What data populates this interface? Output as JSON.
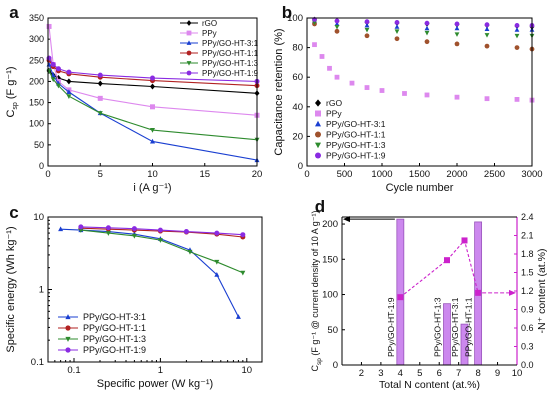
{
  "chart_data": [
    {
      "panel_label": "a",
      "type": "line",
      "xlabel": "i (A g⁻¹)",
      "ylabel_main": "C",
      "ylabel_sub": "sp",
      "ylabel_unit": "(F g⁻¹)",
      "xlim": [
        0,
        20
      ],
      "ylim": [
        0,
        350
      ],
      "xticks": [
        0,
        5,
        10,
        15,
        20
      ],
      "yticks": [
        0,
        50,
        100,
        150,
        200,
        250,
        300,
        350
      ],
      "legend_position": "top-right",
      "series": [
        {
          "name": "rGO",
          "color": "#000000",
          "marker": "diamond",
          "x": [
            0.1,
            0.5,
            1,
            2,
            5,
            10,
            20
          ],
          "y": [
            225,
            215,
            208,
            200,
            195,
            188,
            172
          ]
        },
        {
          "name": "PPy",
          "color": "#dd88ee",
          "marker": "square",
          "x": [
            0.1,
            0.5,
            1,
            2,
            5,
            10,
            20
          ],
          "y": [
            330,
            240,
            200,
            180,
            160,
            140,
            120
          ]
        },
        {
          "name": "PPy/GO-HT-3:1",
          "color": "#1a3fd1",
          "marker": "triangle-up",
          "x": [
            0.1,
            0.5,
            1,
            2,
            5,
            10,
            20
          ],
          "y": [
            240,
            215,
            195,
            175,
            125,
            58,
            14
          ]
        },
        {
          "name": "PPy/GO-HT-1:1",
          "color": "#b22222",
          "marker": "circle",
          "x": [
            0.1,
            0.5,
            1,
            2,
            5,
            10,
            20
          ],
          "y": [
            250,
            235,
            225,
            218,
            210,
            202,
            190
          ]
        },
        {
          "name": "PPy/GO-HT-1:3",
          "color": "#2e8b2e",
          "marker": "triangle-down",
          "x": [
            0.1,
            0.5,
            1,
            2,
            5,
            10,
            20
          ],
          "y": [
            225,
            205,
            190,
            165,
            125,
            85,
            62
          ]
        },
        {
          "name": "PPy/GO-HT-1:9",
          "color": "#8a2be2",
          "marker": "circle",
          "x": [
            0.1,
            0.5,
            1,
            2,
            5,
            10,
            20
          ],
          "y": [
            255,
            240,
            230,
            222,
            215,
            208,
            200
          ]
        }
      ]
    },
    {
      "panel_label": "b",
      "type": "scatter",
      "xlabel": "Cycle number",
      "ylabel": "Capacitance retention (%)",
      "xlim": [
        0,
        3000
      ],
      "ylim": [
        0,
        100
      ],
      "xticks": [
        0,
        500,
        1000,
        1500,
        2000,
        2500,
        3000
      ],
      "yticks": [
        0,
        20,
        40,
        60,
        80,
        100
      ],
      "legend_position": "center-left",
      "series": [
        {
          "name": "rGO",
          "color": "#000000",
          "marker": "diamond",
          "x": [
            100,
            400,
            800,
            1200,
            1600,
            2000,
            2400,
            2800,
            3000
          ],
          "y": [
            99,
            98,
            97,
            96.5,
            96,
            95.5,
            95,
            94.5,
            94
          ]
        },
        {
          "name": "PPy",
          "color": "#dd88ee",
          "marker": "square",
          "x": [
            100,
            200,
            300,
            400,
            600,
            800,
            1000,
            1300,
            1600,
            2000,
            2400,
            2800,
            3000
          ],
          "y": [
            82,
            74,
            66,
            60,
            56,
            53,
            51,
            49,
            48,
            46.5,
            45.5,
            45,
            44.5
          ]
        },
        {
          "name": "PPy/GO-HT-3:1",
          "color": "#1a3fd1",
          "marker": "triangle-up",
          "x": [
            100,
            400,
            800,
            1200,
            1600,
            2000,
            2400,
            2800,
            3000
          ],
          "y": [
            98,
            96,
            95,
            94,
            93,
            93,
            92.5,
            92,
            92
          ]
        },
        {
          "name": "PPy/GO-HT-1:1",
          "color": "#a0522d",
          "marker": "circle",
          "x": [
            100,
            400,
            800,
            1200,
            1600,
            2000,
            2400,
            2800,
            3000
          ],
          "y": [
            96,
            91,
            88,
            86,
            84,
            82.5,
            81,
            80,
            79
          ]
        },
        {
          "name": "PPy/GO-HT-1:3",
          "color": "#2e8b2e",
          "marker": "triangle-down",
          "x": [
            100,
            400,
            800,
            1200,
            1600,
            2000,
            2400,
            2800,
            3000
          ],
          "y": [
            97,
            94,
            92,
            91,
            90,
            89,
            88.5,
            88,
            88
          ]
        },
        {
          "name": "PPy/GO-HT-1:9",
          "color": "#8a2be2",
          "marker": "circle",
          "x": [
            100,
            400,
            800,
            1200,
            1600,
            2000,
            2400,
            2800,
            3000
          ],
          "y": [
            99,
            98,
            97.5,
            97,
            96.5,
            96,
            95.5,
            95,
            95
          ]
        }
      ]
    },
    {
      "panel_label": "c",
      "type": "line",
      "xscale": "log",
      "yscale": "log",
      "xlabel": "Specific power (W kg⁻¹)",
      "ylabel": "Specific energy (Wh kg⁻¹)",
      "xlim": [
        0.05,
        15
      ],
      "ylim": [
        0.1,
        10
      ],
      "xticks": [
        0.1,
        1,
        10
      ],
      "xtick_labels": [
        "0.1",
        "1",
        "10"
      ],
      "yticks": [
        0.1,
        1,
        10
      ],
      "ytick_labels": [
        "0.1",
        "1",
        "10"
      ],
      "legend_position": "bottom-left",
      "series": [
        {
          "name": "PPy/GO-HT-3:1",
          "color": "#1a3fd1",
          "marker": "triangle-up",
          "x": [
            0.07,
            0.12,
            0.25,
            0.5,
            1.0,
            2.2,
            4.5,
            8.0
          ],
          "y": [
            6.8,
            6.6,
            6.3,
            5.8,
            5.0,
            3.5,
            1.6,
            0.42
          ]
        },
        {
          "name": "PPy/GO-HT-1:1",
          "color": "#b22222",
          "marker": "circle",
          "x": [
            0.12,
            0.25,
            0.5,
            1.0,
            2.0,
            4.5,
            9.0
          ],
          "y": [
            7.0,
            6.8,
            6.6,
            6.4,
            6.2,
            5.8,
            5.3
          ]
        },
        {
          "name": "PPy/GO-HT-1:3",
          "color": "#2e8b2e",
          "marker": "triangle-down",
          "x": [
            0.12,
            0.25,
            0.5,
            1.0,
            2.2,
            4.5,
            9.0
          ],
          "y": [
            6.6,
            6.0,
            5.5,
            4.8,
            3.3,
            2.4,
            1.7
          ]
        },
        {
          "name": "PPy/GO-HT-1:9",
          "color": "#8a2be2",
          "marker": "circle",
          "x": [
            0.12,
            0.25,
            0.5,
            1.0,
            2.0,
            4.5,
            9.0
          ],
          "y": [
            7.3,
            7.1,
            6.9,
            6.6,
            6.3,
            6.0,
            5.7
          ]
        }
      ]
    },
    {
      "panel_label": "d",
      "type": "bar",
      "xlabel": "Total N content (at.%)",
      "ylabel_left_main": "C",
      "ylabel_left_sub": "sp",
      "ylabel_left_rest": " (F g⁻¹ @ current density of 10 A g⁻¹)",
      "ylabel_right": "-N⁺ content (at.%)",
      "right_axis_color": "#cc22cc",
      "bar_color": "#cc88ee",
      "xlim": [
        1,
        10
      ],
      "xticks": [
        2,
        3,
        4,
        5,
        6,
        7,
        8,
        9,
        10
      ],
      "ylim_left": [
        0,
        210
      ],
      "yticks_left": [
        0,
        50,
        100,
        150,
        200
      ],
      "ylim_right": [
        0,
        2.4
      ],
      "yticks_right": [
        0.0,
        0.3,
        0.6,
        0.9,
        1.2,
        1.5,
        1.8,
        2.1,
        2.4
      ],
      "ytick_labels_right": [
        "0.0",
        "0.3",
        "0.6",
        "0.9",
        "1.2",
        "1.5",
        "1.8",
        "2.1",
        "2.4"
      ],
      "bars": [
        {
          "label": "PPy/GO-HT-1:9",
          "x": 4.0,
          "value": 207
        },
        {
          "label": "PPy/GO-HT-1:3",
          "x": 6.4,
          "value": 87
        },
        {
          "label": "PPy/GO-HT-3:1",
          "x": 7.3,
          "value": 58
        },
        {
          "label": "PPy/GO-HT-1:1",
          "x": 8.0,
          "value": 203
        }
      ],
      "n_plus_series": {
        "x": [
          4.0,
          6.4,
          7.3,
          8.0
        ],
        "y": [
          1.1,
          1.7,
          2.02,
          1.17
        ]
      }
    }
  ]
}
